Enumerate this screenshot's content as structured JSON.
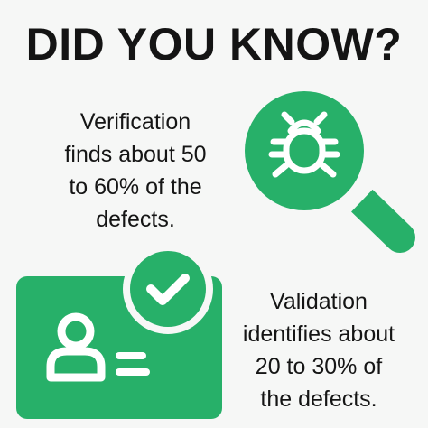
{
  "title": "DID YOU KNOW?",
  "facts": [
    {
      "lines": [
        "Verification",
        "finds about 50",
        "to 60% of the",
        "defects."
      ]
    },
    {
      "lines": [
        "Validation",
        "identifies about",
        "20 to 30% of",
        "the defects."
      ]
    }
  ],
  "icons": {
    "top": "magnifier-bug-icon",
    "bottom": "id-card-check-icon"
  },
  "colors": {
    "accent": "#27b069",
    "background": "#f6f7f6",
    "text": "#141414"
  }
}
